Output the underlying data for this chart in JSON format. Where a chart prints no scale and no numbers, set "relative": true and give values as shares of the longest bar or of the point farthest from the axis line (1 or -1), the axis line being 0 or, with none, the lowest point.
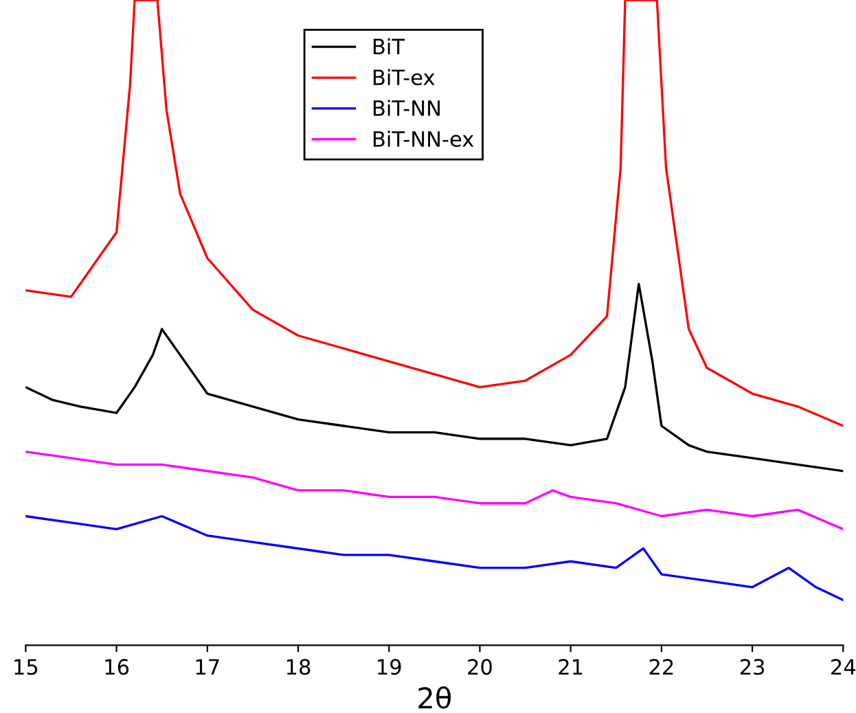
{
  "chart_data": {
    "type": "line",
    "relative": true,
    "xlabel": "2θ",
    "xlim": [
      15,
      24
    ],
    "xticks": [
      15,
      16,
      17,
      18,
      19,
      20,
      21,
      22,
      23,
      24
    ],
    "grid": false,
    "legend": "top",
    "tick_labels": "x",
    "line_style": "solid",
    "marker": "none",
    "series": [
      {
        "name": "BiT",
        "color": "#000000",
        "x": [
          15,
          15.3,
          15.6,
          16,
          16.2,
          16.4,
          16.5,
          16.7,
          17,
          17.5,
          18,
          18.5,
          19,
          19.5,
          20,
          20.5,
          21,
          21.4,
          21.6,
          21.75,
          21.9,
          22,
          22.3,
          22.5,
          23,
          23.5,
          24
        ],
        "values": [
          0.4,
          0.38,
          0.37,
          0.36,
          0.4,
          0.45,
          0.49,
          0.45,
          0.39,
          0.37,
          0.35,
          0.34,
          0.33,
          0.33,
          0.32,
          0.32,
          0.31,
          0.32,
          0.4,
          0.56,
          0.44,
          0.34,
          0.31,
          0.3,
          0.29,
          0.28,
          0.27
        ]
      },
      {
        "name": "BiT-ex",
        "color": "#ff0000",
        "x": [
          15,
          15.5,
          15.8,
          16,
          16.15,
          16.2,
          16.45,
          16.55,
          16.7,
          17,
          17.5,
          18,
          18.5,
          19,
          19.5,
          20,
          20.5,
          21,
          21.4,
          21.55,
          21.6,
          21.95,
          22.05,
          22.3,
          22.5,
          23,
          23.5,
          24
        ],
        "values": [
          0.55,
          0.54,
          0.6,
          0.64,
          0.87,
          1,
          1,
          0.83,
          0.7,
          0.6,
          0.52,
          0.48,
          0.46,
          0.44,
          0.42,
          0.4,
          0.41,
          0.45,
          0.51,
          0.74,
          1,
          1,
          0.74,
          0.49,
          0.43,
          0.39,
          0.37,
          0.34
        ]
      },
      {
        "name": "BiT-NN",
        "color": "#0000ff",
        "x": [
          15,
          15.5,
          16,
          16.5,
          17,
          17.5,
          18,
          18.5,
          19,
          19.5,
          20,
          20.5,
          21,
          21.5,
          21.8,
          22,
          22.5,
          23,
          23.4,
          23.7,
          24
        ],
        "values": [
          0.2,
          0.19,
          0.18,
          0.2,
          0.17,
          0.16,
          0.15,
          0.14,
          0.14,
          0.13,
          0.12,
          0.12,
          0.13,
          0.12,
          0.15,
          0.11,
          0.1,
          0.09,
          0.12,
          0.09,
          0.07
        ]
      },
      {
        "name": "BiT-NN-ex",
        "color": "#ff00ff",
        "x": [
          15,
          15.5,
          16,
          16.5,
          17,
          17.5,
          18,
          18.5,
          19,
          19.5,
          20,
          20.5,
          20.8,
          21,
          21.5,
          22,
          22.5,
          23,
          23.5,
          24
        ],
        "values": [
          0.3,
          0.29,
          0.28,
          0.28,
          0.27,
          0.26,
          0.24,
          0.24,
          0.23,
          0.23,
          0.22,
          0.22,
          0.24,
          0.23,
          0.22,
          0.2,
          0.21,
          0.2,
          0.21,
          0.18
        ]
      }
    ]
  }
}
